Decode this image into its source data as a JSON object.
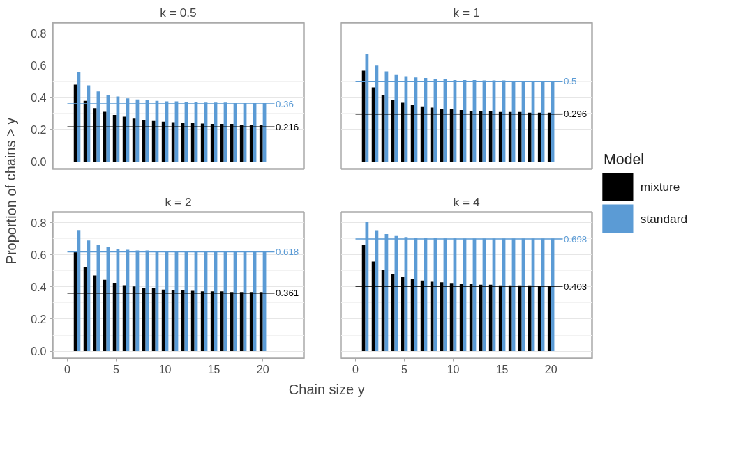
{
  "chart_data": [
    {
      "type": "bar",
      "title": "k = 0.5",
      "xlabel": "Chain size y",
      "ylabel": "Proportion of chains > y",
      "legend_title": "Model",
      "legend": "right",
      "grid": "y",
      "tick_labels": "y",
      "x": [
        1,
        2,
        3,
        4,
        5,
        6,
        7,
        8,
        9,
        10,
        11,
        12,
        13,
        14,
        15,
        16,
        17,
        18,
        19,
        20
      ],
      "xlim": [
        -1.5,
        24.2
      ],
      "xticks": [
        0,
        5,
        10,
        15,
        20
      ],
      "ylim": [
        -0.045,
        0.865
      ],
      "yticks": [
        {
          "value": 0,
          "label": "0.0"
        },
        0.2,
        0.4,
        0.6,
        0.8
      ],
      "series": [
        {
          "name": "mixture",
          "color": "#000000",
          "values": [
            0.479,
            0.379,
            0.333,
            0.31,
            0.291,
            0.28,
            0.268,
            0.26,
            0.257,
            0.249,
            0.245,
            0.241,
            0.241,
            0.237,
            0.234,
            0.234,
            0.234,
            0.23,
            0.23,
            0.226
          ]
        },
        {
          "name": "standard",
          "color": "#5b9bd5",
          "values": [
            0.555,
            0.475,
            0.437,
            0.417,
            0.406,
            0.394,
            0.387,
            0.383,
            0.379,
            0.375,
            0.375,
            0.371,
            0.371,
            0.368,
            0.368,
            0.368,
            0.364,
            0.364,
            0.364,
            0.364
          ]
        }
      ],
      "ref_lines": [
        {
          "axis": "y",
          "value": 0.36,
          "label": "0.36",
          "color": "#5b9bd5"
        },
        {
          "axis": "y",
          "value": 0.216,
          "label": "0.216",
          "color": "#000000"
        }
      ]
    },
    {
      "type": "bar",
      "title": "k = 1",
      "grid": "y",
      "tick_labels": false,
      "x": [
        1,
        2,
        3,
        4,
        5,
        6,
        7,
        8,
        9,
        10,
        11,
        12,
        13,
        14,
        15,
        16,
        17,
        18,
        19,
        20
      ],
      "xlim": [
        -1.5,
        24.2
      ],
      "xticks": [
        0,
        5,
        10,
        15,
        20
      ],
      "ylim": [
        -0.045,
        0.865
      ],
      "yticks": [
        0,
        0.2,
        0.4,
        0.6,
        0.8
      ],
      "series": [
        {
          "color": "#000000",
          "values": [
            0.566,
            0.462,
            0.413,
            0.386,
            0.367,
            0.351,
            0.344,
            0.336,
            0.328,
            0.325,
            0.321,
            0.317,
            0.313,
            0.313,
            0.309,
            0.309,
            0.309,
            0.305,
            0.305,
            0.305
          ]
        },
        {
          "color": "#5b9bd5",
          "values": [
            0.669,
            0.597,
            0.562,
            0.543,
            0.531,
            0.524,
            0.52,
            0.516,
            0.512,
            0.508,
            0.508,
            0.508,
            0.505,
            0.505,
            0.505,
            0.503,
            0.503,
            0.502,
            0.502,
            0.502
          ]
        }
      ],
      "ref_lines": [
        {
          "axis": "y",
          "value": 0.5,
          "label": "0.5",
          "color": "#5b9bd5"
        },
        {
          "axis": "y",
          "value": 0.296,
          "label": "0.296",
          "color": "#000000"
        }
      ]
    },
    {
      "type": "bar",
      "title": "k = 2",
      "grid": "y",
      "x": [
        1,
        2,
        3,
        4,
        5,
        6,
        7,
        8,
        9,
        10,
        11,
        12,
        13,
        14,
        15,
        16,
        17,
        18,
        19,
        20
      ],
      "xlim": [
        -1.5,
        24.2
      ],
      "xticks": [
        0,
        5,
        10,
        15,
        20
      ],
      "ylim": [
        -0.045,
        0.865
      ],
      "yticks": [
        {
          "value": 0,
          "label": "0.0"
        },
        0.2,
        0.4,
        0.6,
        0.8
      ],
      "series": [
        {
          "color": "#000000",
          "values": [
            0.62,
            0.52,
            0.471,
            0.444,
            0.425,
            0.41,
            0.402,
            0.394,
            0.391,
            0.383,
            0.379,
            0.379,
            0.375,
            0.372,
            0.372,
            0.372,
            0.368,
            0.368,
            0.368,
            0.368
          ]
        },
        {
          "color": "#5b9bd5",
          "values": [
            0.753,
            0.688,
            0.661,
            0.646,
            0.638,
            0.631,
            0.627,
            0.627,
            0.623,
            0.623,
            0.623,
            0.619,
            0.619,
            0.619,
            0.619,
            0.619,
            0.619,
            0.619,
            0.619,
            0.619
          ]
        }
      ],
      "ref_lines": [
        {
          "axis": "y",
          "value": 0.618,
          "label": "0.618",
          "color": "#5b9bd5"
        },
        {
          "axis": "y",
          "value": 0.361,
          "label": "0.361",
          "color": "#000000"
        }
      ]
    },
    {
      "type": "bar",
      "title": "k = 4",
      "grid": "y",
      "tick_labels": "x",
      "x": [
        1,
        2,
        3,
        4,
        5,
        6,
        7,
        8,
        9,
        10,
        11,
        12,
        13,
        14,
        15,
        16,
        17,
        18,
        19,
        20
      ],
      "xlim": [
        -1.5,
        24.2
      ],
      "xticks": [
        0,
        5,
        10,
        15,
        20
      ],
      "ylim": [
        -0.045,
        0.865
      ],
      "yticks": [
        0,
        0.2,
        0.4,
        0.6,
        0.8
      ],
      "series": [
        {
          "color": "#000000",
          "values": [
            0.66,
            0.557,
            0.508,
            0.481,
            0.462,
            0.447,
            0.439,
            0.432,
            0.428,
            0.424,
            0.42,
            0.416,
            0.413,
            0.413,
            0.409,
            0.409,
            0.409,
            0.409,
            0.405,
            0.405
          ]
        },
        {
          "color": "#5b9bd5",
          "values": [
            0.805,
            0.752,
            0.729,
            0.717,
            0.71,
            0.706,
            0.702,
            0.702,
            0.701,
            0.701,
            0.7,
            0.7,
            0.7,
            0.7,
            0.7,
            0.7,
            0.7,
            0.7,
            0.7,
            0.7
          ]
        }
      ],
      "ref_lines": [
        {
          "axis": "y",
          "value": 0.698,
          "label": "0.698",
          "color": "#5b9bd5"
        },
        {
          "axis": "y",
          "value": 0.403,
          "label": "0.403",
          "color": "#000000"
        }
      ]
    }
  ]
}
